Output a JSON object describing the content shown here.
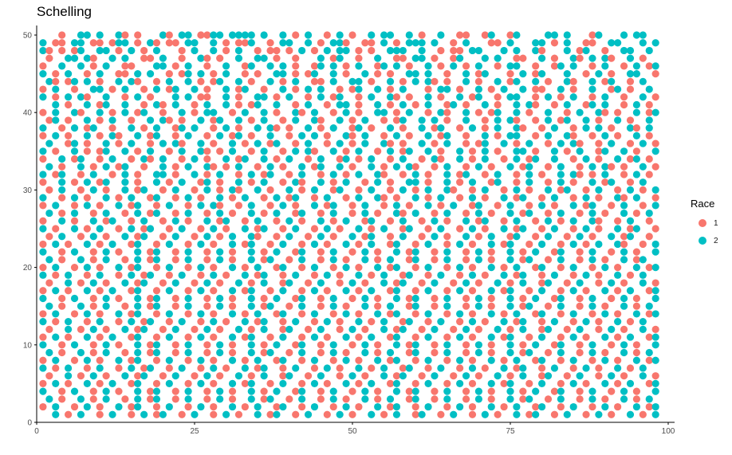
{
  "chart_data": {
    "type": "scatter",
    "title": "Schelling",
    "xlabel": "",
    "ylabel": "",
    "xlim": [
      0,
      100
    ],
    "ylim": [
      0,
      50
    ],
    "x_ticks": [
      0,
      25,
      50,
      75,
      100
    ],
    "y_ticks": [
      0,
      10,
      20,
      30,
      40,
      50
    ],
    "grid": false,
    "legend": {
      "title": "Race",
      "position": "right",
      "entries": [
        {
          "label": "1",
          "color": "#F8766D"
        },
        {
          "label": "2",
          "color": "#00BFC4"
        }
      ]
    },
    "grid_description": "Agents occupy integer cells x=1..100, y=1..50; each cell is race 1, race 2 or empty.",
    "rows": [
      "...1..22.2..21.1...21.22.1122.2222.2..2.1.2..1.2.1..2.22..2.1..2..11..12..12....22.2...12...2.22..",
      "2.11.22.11.122.1.21.11.22..2.1.112..1.22..2.1.221..11.2.1.222.2..1.2...11.2...22.1.2..11..22...2.2",
      "21.1.12..22.1.2.1.2...1.2..2.1.2..1.11.1.2.1.2.22.1.1..222..2..1.11.22...2.2..21...2.12..1..22..2.",
      ".1..22.21..2.2..11.2..1..21.1..2..22.1..1...2.12..1..2..11.22.1..12...2.2..11..2.1..21.2.21..2.1..",
      "1..2..2.1.2..11...22.1.2..1..2..12..2.2.1..12.2.1.2..12.2.1..2.1.2.1.2..1.22..1..12.2..1.2..1.2.12",
      "2.1.2..1.2..11.2.2..1.12.2.1.2..1.1..22.1.12..2.1..2.1.1..22.2..1..2.12...1.2.12...2..1.2.1..22..1",
      ".21.12.2.1..2.21..1.2..2.1.12..2.1..2.1.2..11.2..22.1..2.1.2.21.1..2.1..2.12..2.1..21..2.12..1.2..",
      "1.2..1..22.1.2..1.2.12..2.1..2.12..1..2.1.2.2..1.12..2.1.2...1.22.1..2.1.2..2.11..2.1..2..12.1..2.",
      "2.1.2.21..2..1.2.1...2.2.11..2.1..22.1.2..1.2.12..1.2..21.1..2.1..2.12..1.22..1.2.1.2..1.2..1..2.1",
      "..2.1..2.12..2..1.21.2..1.2..2.1.12..2..1.2..1.22.1..2.1.2.1.2..12.1..2.1..2.21..1.2..12.2..1.2.1.",
      "1.2..21..2.1.2.12..1..2.1.22..1.2..2.1..21.2..1.2.1..22.1.2..1.21..2.1.12..2.1..2..1.2..21.1..2.12",
      ".12.1..2.1.2..1..2.21.1..2.12..2.1.2..1.2..21..2.1.2..1.12..2.2.1..2..1.2.21..1.2.12..2.1..2.1..2.",
      "2..1.2.12..1..2.1.2..12.2..1.2.1..2.21.1..2.1.2..12.1..2.1..2.12..1.2.1.2..21..1.2..1.2.2.1..21.2.",
      "1.2.1..2.1.21..2.12..1.2..1.2.12.1..2..1.2.2.1..21.2..1.2.1..2.12..1..2.1.22..1.2..21..1.2.1..2.1.",
      ".2..12.1..2.1.2..1.2.21..2.1..2.1.2.12..1.2..1.2.1.2..21.1..2.1.2..1.12..2.1.2..1.2.21..1.2..1.2.1",
      "2.1..2.1.12..2.1.2..1.2..21.1.2..1.2..1.2.21..2.1.2..1.2.12..2.1..2.1.2.1..22.1..2.1.2..12..2.1..2",
      "1..2.12..1.2..1.21.2..1.2.1..2.12..2.1.2..1.2..12.1.2..1.2..1.21..2.1.2..1.2.12..2..1.2.1..2.12.1.",
      ".2.1..2.1.2.12..1..2.1.2..21.1.2..1.2.1..2.12..2.1..2.1.2.21..1.2..1.2.1..2.12..1.2..1.2.21.1..2.1",
      "2.12..1.2..1.2.1..22.1..2.1.2..1.2.12..1.2..1.2.1.2..21..1.2.1..2.12..1.2..1.2.1..2.21.1.2..1.2.1.",
      "1..2.1.2.12..2.1..2.1.2..12.1..2.1.2..1.21..2.1.2..1.2.1..22.1..2.1.2..12..1.2..1.2.1..2.12..1.2..",
      ".1.2..1.2.1..2.12..1.2..1.2.1.21..2.1..2.1.2..12..1.2..1.2.1.2..21..1.2..1.2.1..2.12..1.2..1.2.1.2",
      "2..1.2.1..2.1.2..12..1.2.1..2.1.2..1.2.12..1.2..1.2..21.1..2.1.2..1.2.1..2.12..1.2..1.2.1..21.2..1",
      "1.2..1.2.1..2.12..1.2..1.2.21..1.2..1.2.1..2.12..1.2..1.2.1..2.1.2..12..1.2..1.2.1..2.12..1.2..1.2",
      ".2.1.2..1.2..1.2.12..1.2..1.2.1..2.1.2..12..1.2..1.2.1..21.2..1.2..1.2.1..2.12..1.2..1.2.1..2.1.2.",
      "1..2.1..2.12..1.2..1.2.1..2.12..1.2..1.2.1..2.1.2..12..1.2..1.2.1..2.12..1.2..1.2.1.2..21..1.2..1.",
      "2.1..2.1.2..1.2.12..1.2..1.2.1..2.12..1.2..1.2.1..2.1.2..12..1.2..1.2.1..2.12..1.2..1.2.1..2.12..1",
      ".1.2..1.2.1..2.12..1.2..1.2.1.2..21..1.2..1.2.1..2.12..1.2..1.2.1..2.1.2..12..1.2..1.2.1..2.12..1.",
      "1.2.1..2.1.2..12..1.2..1.2.1..2.12..1.2..1.2.1..2.1.2..12..1.2..1.2.1..2.12..1.2..1.2.1.2..21..1.2",
      "2..1.2..1.2.1..2.12..1.2..1.2.1..2.1.2..12..1.2..1.2.1..2.12..1.2..1.2.1..2.1.2..12..1.2..1.2.1..2",
      ".2.1..2.1.2..1.2.12..1.2..1.2.1..2.12..1.2..1.2.1..2.1.2..12..1.2..1.2.1..2.12..1.2..1.2.1..2.12..",
      "1.2..1.2.1..2.12..1.2..1.2.1..2.1.2..12..1.2..1.2.1..2.12..1.2..1.2.1..2.1.2..12..1.2..1.2.1..2.12",
      "2.1.2..1.2..1.2.12..1.2..1.2.1..2.12..1.2..1.2.1..2.1.2..12..1.2..1.2.1..2.12..1.2..1.2.1..2.1.2..",
      ".1..2.1.2.1..2.12..1.2..1.2.1..2.1.2..12..1.2..1.2.1..2.12..1.2..1.2.1..2.1.2..12..1.2..1.2.1..2.1",
      "1.2.1..2.1.2..12..1.2..1.2.1..2.12..1.2..1.2.1..2.1.2..12..1.2..1.2.1..2.12..1.2..1.2.1..2.1.2..12",
      "2..1.2..1.2.1..2.12..1.2..1.2.1..2.1.2..12..1.2..1.2.1..2.12..1.2..1.2.1..2.1.2..12..1.2..1.2.1..2",
      ".2.1..2.1.2..1.2.12..1.2..1.2.1..2.12..1.2..1.2.1..2.1.2..12..1.2..1.2.1..2.12..1.2..1.2.1..2.1.2.",
      "1.2..1.2.1..2.12..1.2..1.2.1..2.1.2..12..1.2..1.2.1..2.12..1.2..1.2.1..2.1.2..12..1.2..1.2.1..2.12",
      "2.1.2..1.2..1.2.12..1.2..1.2.1..2.12..1.2..1.2.1..2.1.2..12..1.2..1.2.1..2.12..1.2..1.2.1..2.1.2..",
      ".1..2.1.2.1..2.12..1.2..1.2.1..2.1.2..12..1.2..1.2.1..2.12..1.2..1.2.1..2.1.2..12..1.2..1.2.1..2.1",
      "1.2.1..2.1.2..12..1.2..1.2.1..2.12..1.2..1.2.1..2.1.2..12..1.2..1.2.1..2.12..1.2..1.2.1..2.1.2..12",
      "2..1.2..1.2.1..2.12..1.2..1.2.1..2.1.2..12..1.2..1.2.1..2.12..1.2..1.2.1..2.1.2..12..1.2..1.2.1..2",
      ".2.1..2.1.2..1.2.12..1.2..1.2.1..2.12..1.2..1.2.1..2.1.2..12..1.2..1.2.1..2.12..1.2..1.2.1..2.1.2.",
      "1.2..1.2.1..2.12..1.2..1.2.1..2.1.2..12..1.2..1.2.1..2.12..1.2..1.2.1..2.1.2..12..1.2..1.2.1..2.12",
      "2.1.2..1.2..1.2.12..1.2..1.2.1..2.12..1.2..1.2.1..2.1.2..12..1.2..1.2.1..2.12..1.2..1.2.1..2.1.2..",
      ".1..2.1.2.1..2.12..1.2..1.2.1..2.1.2..12..1.2..1.2.1..2.12..1.2..1.2.1..2.1.2..12..1.2..1.2.1..2.1",
      "1.2.1..2.1.2..12..1.2..1.2.1..2.12..1.2..1.2.1..2.1.2..12..1.2..1.2.1..2.12..1.2..1.2.1..2.1.2..12",
      "2..1.2..1.2.1..2.12..1.2..1.2.1..2.1.2..12..1.2..1.2.1..2.12..1.2..1.2.1..2.1.2..12..1.2..1.2.1..2",
      ".2.1..2.1.2..1.2.12..1.2..1.2.1..2.12..1.2..1.2.1..2.1.2..12..1.2..1.2.1..2.12..1.2..1.2.1..2.1.2.",
      "1.2..1.2.1..2.12..1.2..1.2.1..2.1.2..12..1.2..1.2.1..2.12..1.2..1.2.1..2.1.2..12..1.2..1.2.1..2.12",
      "..2.1.2..1.2..1.2.12..1.2..1.2.1..2.12..1.2..1.2.1..2.1.2..12..1.2..1.2.1..2.12..1.2..1.2.1..2.1.2"
    ]
  }
}
